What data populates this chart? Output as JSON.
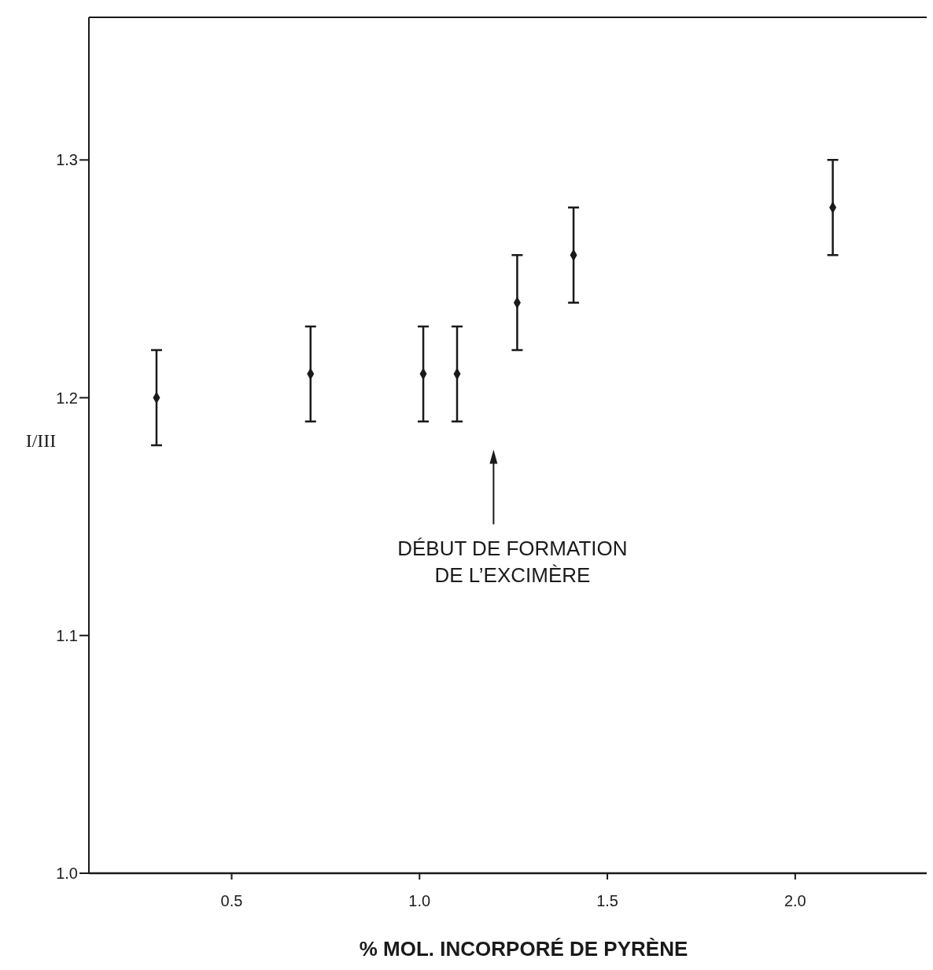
{
  "chart_data": {
    "type": "scatter",
    "xlabel": "% MOL. INCORPORÉ DE PYRÈNE",
    "ylabel": "I/III",
    "x": [
      0.3,
      0.71,
      1.01,
      1.1,
      1.26,
      1.41,
      2.1
    ],
    "series": [
      {
        "color": "#1a1a1a",
        "values": [
          1.2,
          1.21,
          1.21,
          1.21,
          1.24,
          1.26,
          1.28
        ],
        "errors": [
          0.02,
          0.02,
          0.02,
          0.02,
          0.02,
          0.02,
          0.02
        ]
      }
    ],
    "xlim": [
      0.12,
      2.35
    ],
    "ylim": [
      1.0,
      1.36
    ],
    "xticks": [
      {
        "value": 0.5,
        "label": "0.5"
      },
      {
        "value": 1.0,
        "label": "1.0"
      },
      {
        "value": 1.5,
        "label": "1.5"
      },
      {
        "value": 2.0,
        "label": "2.0"
      }
    ],
    "yticks": [
      {
        "value": 1.0,
        "label": "1.0"
      },
      {
        "value": 1.1,
        "label": "1.1"
      },
      {
        "value": 1.2,
        "label": "1.2"
      },
      {
        "value": 1.3,
        "label": "1.3"
      }
    ],
    "marker": "diamond",
    "grid": false,
    "annotations": [
      "DÉBUT DE FORMATION\nDE L’EXCIMÈRE"
    ]
  }
}
